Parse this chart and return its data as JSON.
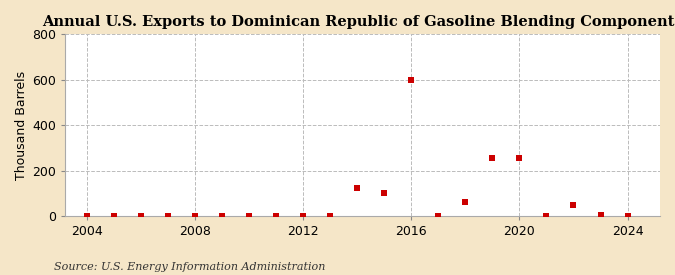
{
  "title": "Annual U.S. Exports to Dominican Republic of Gasoline Blending Components",
  "ylabel": "Thousand Barrels",
  "source": "Source: U.S. Energy Information Administration",
  "fig_background_color": "#f5e6c8",
  "plot_background_color": "#ffffff",
  "marker_color": "#cc0000",
  "grid_color": "#bbbbbb",
  "years": [
    2004,
    2005,
    2006,
    2007,
    2008,
    2009,
    2010,
    2011,
    2012,
    2013,
    2014,
    2015,
    2016,
    2017,
    2018,
    2019,
    2020,
    2021,
    2022,
    2023,
    2024
  ],
  "values": [
    0,
    0,
    0,
    0,
    0,
    0,
    0,
    0,
    0,
    0,
    125,
    100,
    600,
    0,
    60,
    255,
    255,
    0,
    50,
    5,
    0
  ],
  "xlim": [
    2003.2,
    2025.2
  ],
  "ylim": [
    0,
    800
  ],
  "yticks": [
    0,
    200,
    400,
    600,
    800
  ],
  "xticks": [
    2004,
    2008,
    2012,
    2016,
    2020,
    2024
  ],
  "title_fontsize": 10.5,
  "axis_fontsize": 9,
  "source_fontsize": 8
}
